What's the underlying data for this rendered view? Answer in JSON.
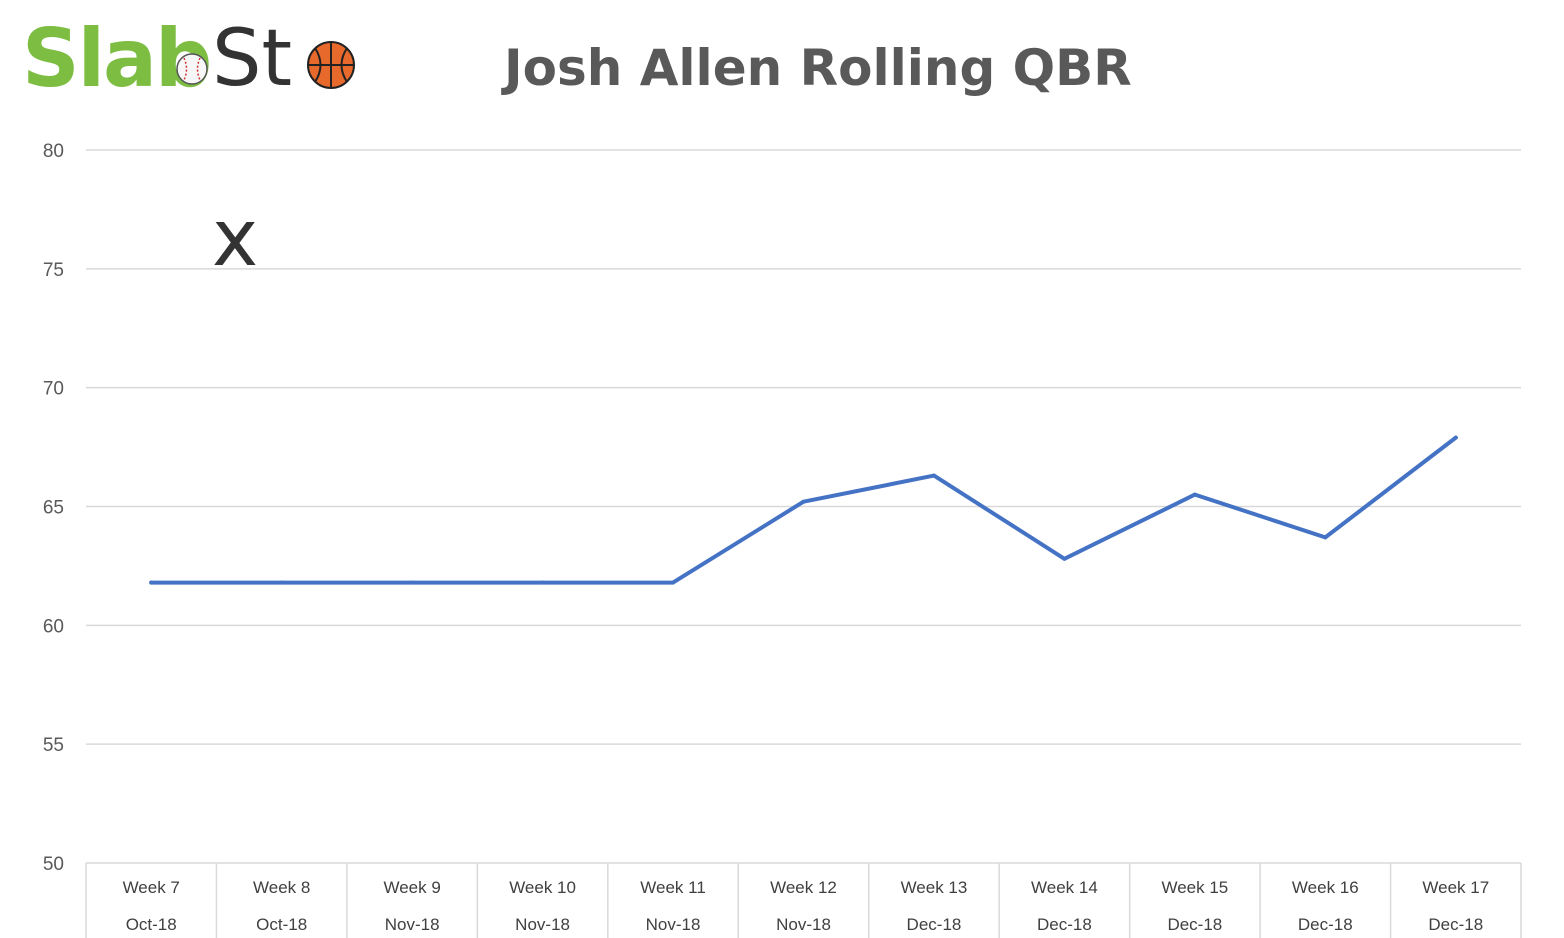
{
  "logo": {
    "part1": "Slab",
    "part2a": "St",
    "part2b": "x",
    "icons": [
      "baseball-icon",
      "basketball-icon"
    ]
  },
  "chart_data": {
    "type": "line",
    "title": "Josh Allen Rolling QBR",
    "xlabel": "",
    "ylabel": "",
    "ylim": [
      50,
      80
    ],
    "yticks": [
      50,
      55,
      60,
      65,
      70,
      75,
      80
    ],
    "grid": true,
    "categories": [
      {
        "week": "Week 7",
        "month": "Oct-18"
      },
      {
        "week": "Week 8",
        "month": "Oct-18"
      },
      {
        "week": "Week 9",
        "month": "Nov-18"
      },
      {
        "week": "Week 10",
        "month": "Nov-18"
      },
      {
        "week": "Week 11",
        "month": "Nov-18"
      },
      {
        "week": "Week 12",
        "month": "Nov-18"
      },
      {
        "week": "Week 13",
        "month": "Dec-18"
      },
      {
        "week": "Week 14",
        "month": "Dec-18"
      },
      {
        "week": "Week 15",
        "month": "Dec-18"
      },
      {
        "week": "Week 16",
        "month": "Dec-18"
      },
      {
        "week": "Week 17",
        "month": "Dec-18"
      }
    ],
    "series": [
      {
        "color": "#4472c4",
        "values": [
          61.8,
          61.8,
          61.8,
          61.8,
          61.8,
          65.2,
          66.3,
          62.8,
          65.5,
          63.7,
          67.9
        ]
      }
    ],
    "colors": {
      "line": "#4472c4",
      "grid": "#d9d9d9",
      "text": "#595959"
    }
  }
}
